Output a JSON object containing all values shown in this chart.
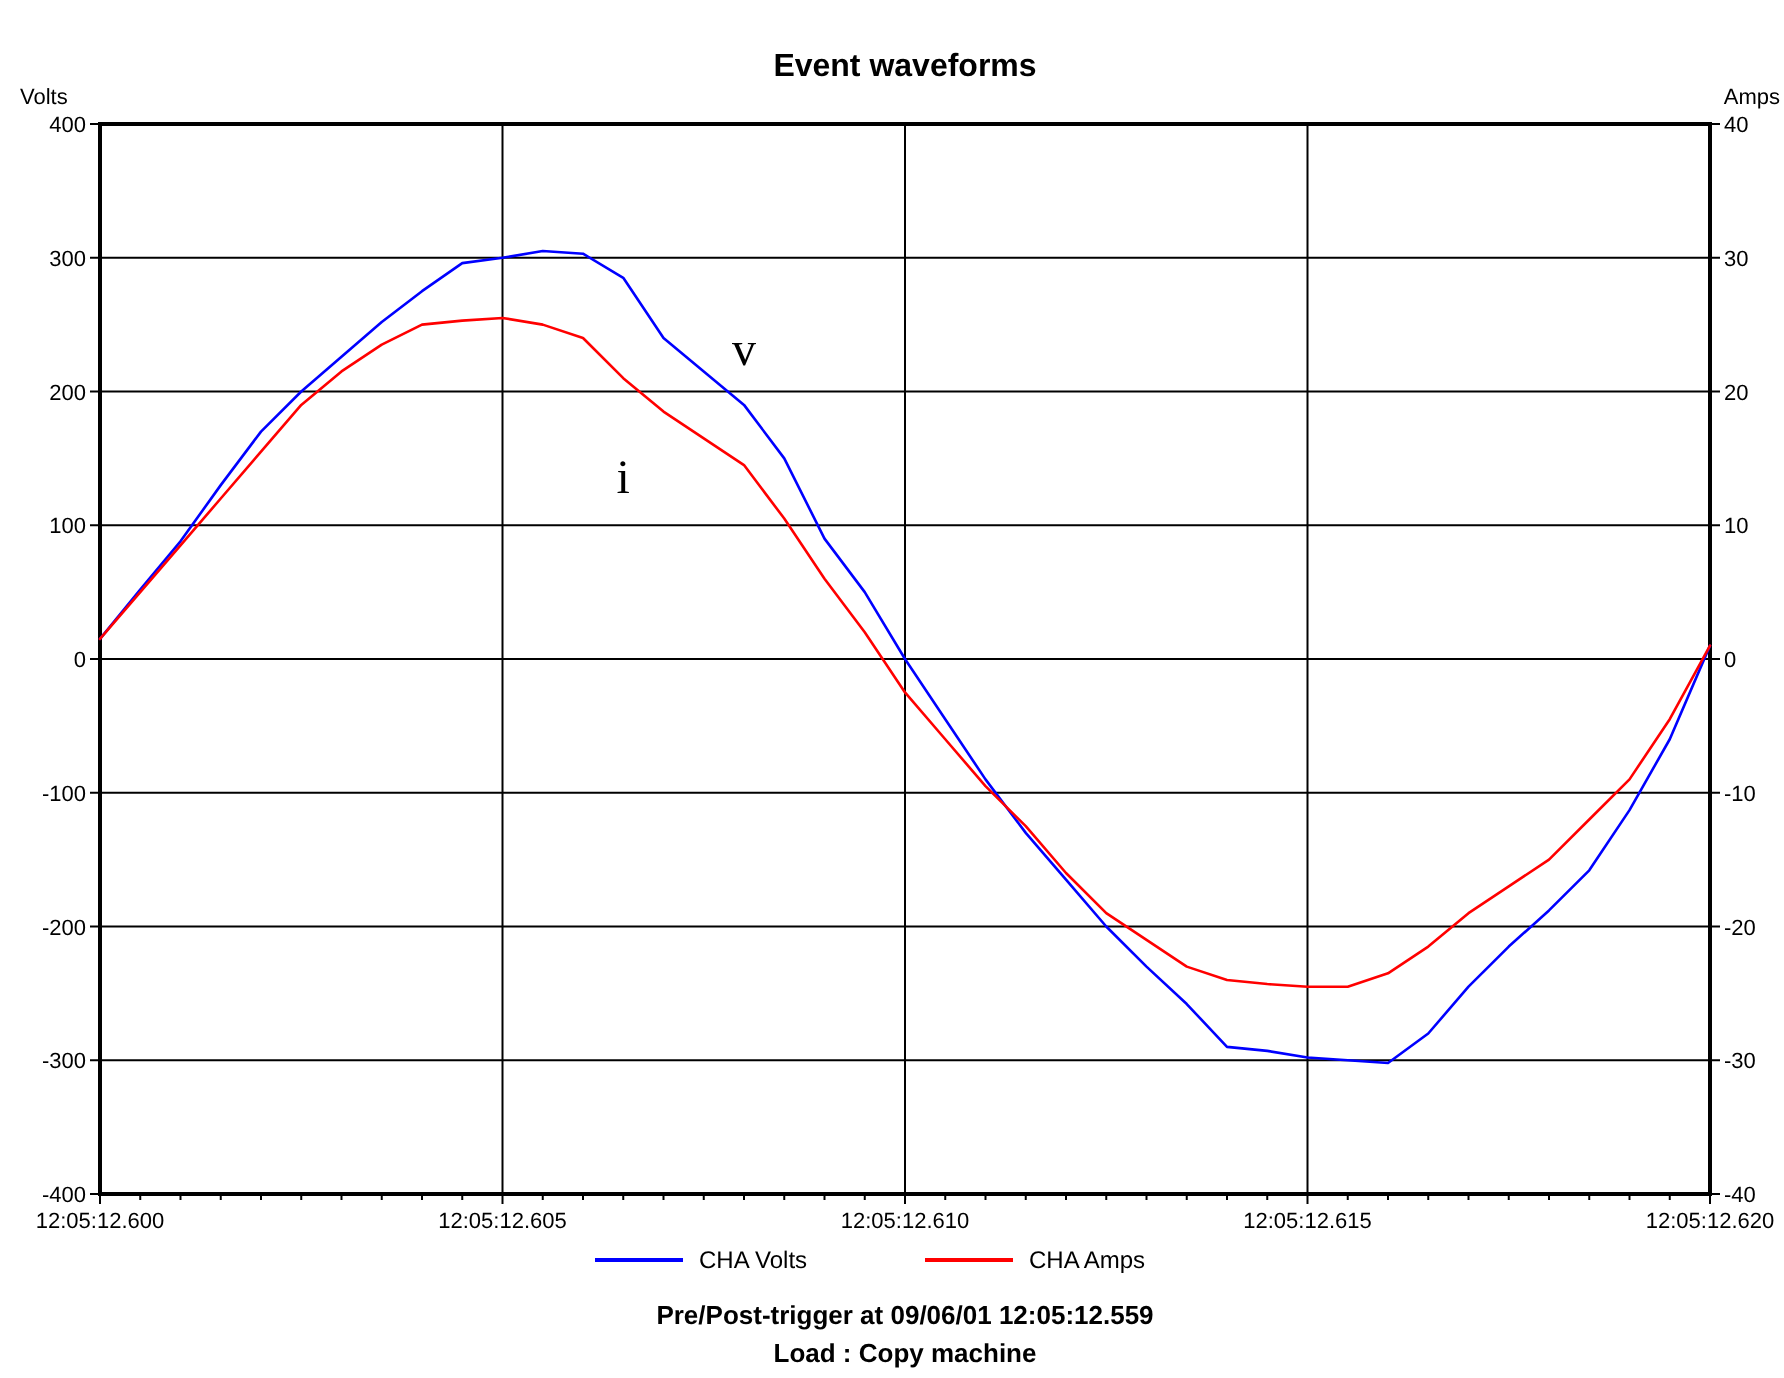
{
  "chart_data": {
    "type": "line",
    "title": "Event waveforms",
    "ylabel": "Volts",
    "y2label": "Amps",
    "categories": [
      "12:05:12.600",
      null,
      null,
      null,
      null,
      null,
      null,
      null,
      null,
      null,
      "12:05:12.605",
      null,
      null,
      null,
      null,
      null,
      null,
      null,
      null,
      null,
      "12:05:12.610",
      null,
      null,
      null,
      null,
      null,
      null,
      null,
      null,
      null,
      "12:05:12.615",
      null,
      null,
      null,
      null,
      null,
      null,
      null,
      null,
      null,
      "12:05:12.620"
    ],
    "ylim": [
      -400,
      400
    ],
    "yticks": [
      -400,
      -300,
      -200,
      -100,
      0,
      100,
      200,
      300,
      400
    ],
    "y2lim": [
      -40,
      40
    ],
    "y2ticks": [
      -40,
      -30,
      -20,
      -10,
      0,
      10,
      20,
      30,
      40
    ],
    "series": [
      {
        "name": "CHA Volts",
        "color": "#0000ff",
        "values": [
          15,
          52,
          88,
          130,
          170,
          200,
          226,
          252,
          275,
          296,
          300,
          305,
          303,
          285,
          240,
          215,
          190,
          150,
          90,
          50,
          0,
          -45,
          -90,
          -130,
          -165,
          -200,
          -230,
          -258,
          -290,
          -293,
          -298,
          -300,
          -302,
          -280,
          -245,
          -215,
          -188,
          -158,
          -113,
          -60,
          10
        ]
      },
      {
        "name": "CHA Amps",
        "color": "#ff0000",
        "axis": "y2",
        "values": [
          1.5,
          5,
          8.5,
          12,
          15.5,
          19,
          21.5,
          23.5,
          25,
          25.3,
          25.5,
          25,
          24,
          21,
          18.5,
          16.5,
          14.5,
          10.5,
          6,
          2,
          -2.5,
          -6,
          -9.5,
          -12.5,
          -16,
          -19,
          -21,
          -23,
          -24,
          -24.3,
          -24.5,
          -24.5,
          -23.5,
          -21.5,
          -19,
          -17,
          -15,
          -12,
          -9,
          -4.5,
          1
        ]
      }
    ],
    "grid": true,
    "legend": "bottom",
    "marker": "none",
    "line_style": "solid",
    "annotations": [
      "v",
      "i",
      "Pre/Post-trigger at 09/06/01 12:05:12.559",
      "Load : Copy machine"
    ]
  }
}
